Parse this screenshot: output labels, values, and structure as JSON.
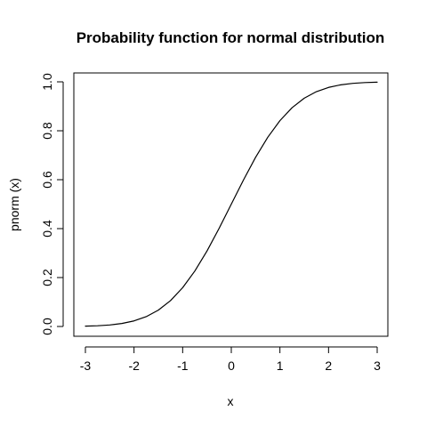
{
  "chart_data": {
    "type": "line",
    "title": "Probability function for normal distribution",
    "xlabel": "x",
    "ylabel": "pnorm (x)",
    "xlim": [
      -3,
      3
    ],
    "ylim": [
      0,
      1
    ],
    "grid": false,
    "legend": "none",
    "x_ticks": [
      {
        "value": -3,
        "label": "-3"
      },
      {
        "value": -2,
        "label": "-2"
      },
      {
        "value": -1,
        "label": "-1"
      },
      {
        "value": 0,
        "label": "0"
      },
      {
        "value": 1,
        "label": "1"
      },
      {
        "value": 2,
        "label": "2"
      },
      {
        "value": 3,
        "label": "3"
      }
    ],
    "y_ticks": [
      {
        "value": 0,
        "label": "0.0"
      },
      {
        "value": 0.2,
        "label": "0.2"
      },
      {
        "value": 0.4,
        "label": "0.4"
      },
      {
        "value": 0.6,
        "label": "0.6"
      },
      {
        "value": 0.8,
        "label": "0.8"
      },
      {
        "value": 1,
        "label": "1.0"
      }
    ],
    "series": [
      {
        "x": [
          -3,
          -2.75,
          -2.5,
          -2.25,
          -2,
          -1.75,
          -1.5,
          -1.25,
          -1,
          -0.75,
          -0.5,
          -0.25,
          0,
          0.25,
          0.5,
          0.75,
          1,
          1.25,
          1.5,
          1.75,
          2,
          2.25,
          2.5,
          2.75,
          3
        ],
        "y": [
          0.0013,
          0.003,
          0.0062,
          0.0122,
          0.0228,
          0.0401,
          0.0668,
          0.1056,
          0.1587,
          0.2266,
          0.3085,
          0.4013,
          0.5,
          0.5987,
          0.6915,
          0.7734,
          0.8413,
          0.8944,
          0.9332,
          0.9599,
          0.9772,
          0.9878,
          0.9938,
          0.997,
          0.9987
        ],
        "color": "#000000"
      }
    ]
  }
}
